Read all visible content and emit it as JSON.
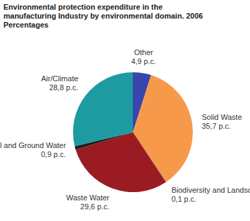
{
  "chart_data": {
    "type": "pie",
    "title": "Environmental protection expenditure in the manufacturing Industry by environmental domain. 2006",
    "subtitle": "Percentages",
    "categories": [
      "Other",
      "Solid Waste",
      "Biodiversity and Landscape",
      "Waste Water",
      "Soil and Ground Water",
      "Air/Climate"
    ],
    "values": [
      4.9,
      35.7,
      0.1,
      29.6,
      0.9,
      28.8
    ],
    "value_labels": [
      "4,9 p.c.",
      "35,7 p.c.",
      "0,1 p.c.",
      "29,6 p.c.",
      "0,9 p.c.",
      "28,8 p.c."
    ],
    "colors": [
      "#3a44ad",
      "#f7994a",
      "#3e9a4a",
      "#9a1c22",
      "#1c1c1c",
      "#1d9ba0"
    ],
    "data_labels": true
  }
}
